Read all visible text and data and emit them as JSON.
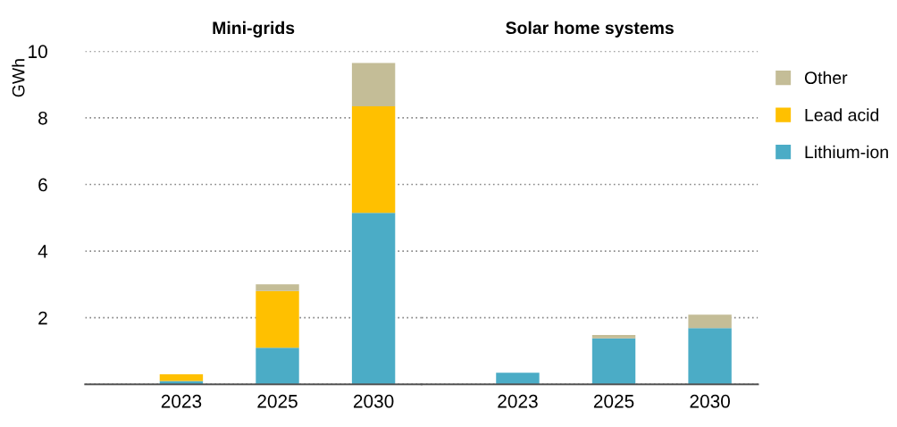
{
  "chart_data": [
    {
      "type": "bar",
      "title": "Mini-grids",
      "ylabel": "GWh",
      "categories": [
        "2023",
        "2025",
        "2030"
      ],
      "stacked": true,
      "ylim": [
        0,
        10
      ],
      "yticks": [
        {
          "value": 0,
          "label": null
        },
        2,
        4,
        6,
        8,
        10
      ],
      "grid": "y",
      "legend": "right",
      "series": [
        {
          "name": "Lithium-ion",
          "color": "#4bacc6",
          "values": [
            0.1,
            1.1,
            5.15
          ]
        },
        {
          "name": "Lead acid",
          "color": "#ffc000",
          "values": [
            0.2,
            1.7,
            3.2
          ]
        },
        {
          "name": "Other",
          "color": "#c4bd97",
          "values": [
            0.0,
            0.2,
            1.3
          ]
        }
      ]
    },
    {
      "type": "bar",
      "title": "Solar home systems",
      "categories": [
        "2023",
        "2025",
        "2030"
      ],
      "stacked": true,
      "ylim": [
        0,
        10
      ],
      "yticks": [
        {
          "value": 0,
          "label": null
        },
        2,
        4,
        6,
        8,
        10
      ],
      "grid": "y",
      "tick_labels": "x",
      "series": [
        {
          "color": "#4bacc6",
          "values": [
            0.35,
            1.38,
            1.69
          ]
        },
        {
          "color": "#c4bd97",
          "values": [
            0.0,
            0.1,
            0.4
          ]
        }
      ]
    }
  ]
}
